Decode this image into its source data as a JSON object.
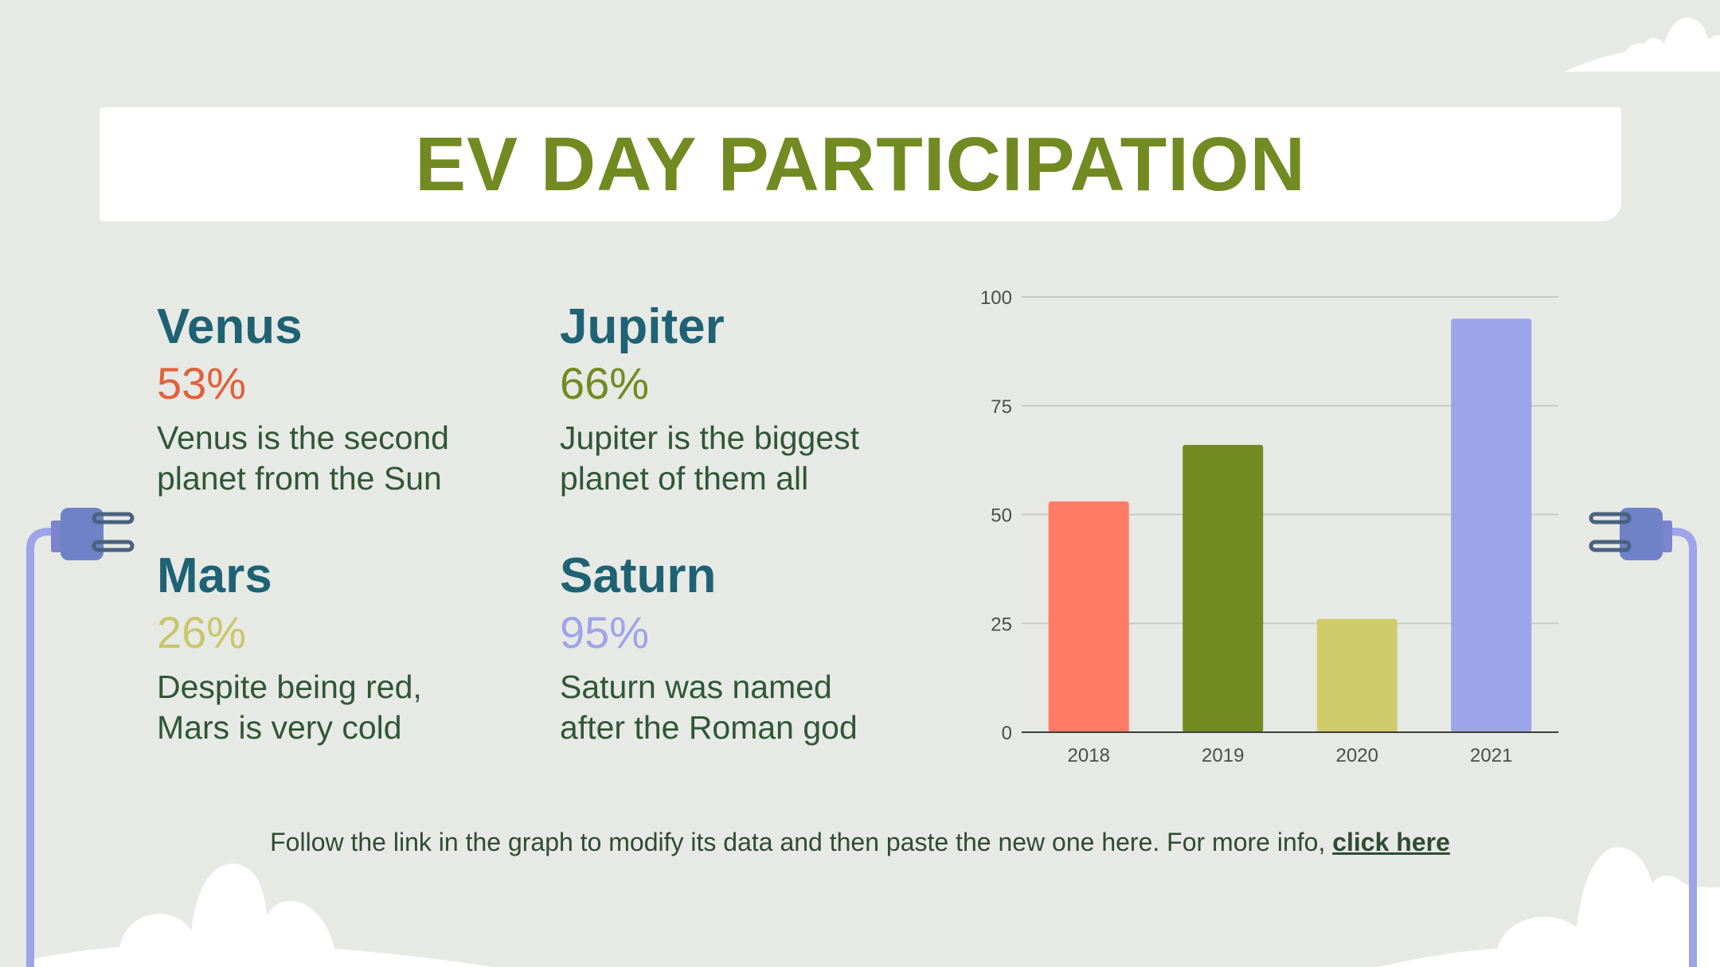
{
  "title": "EV DAY PARTICIPATION",
  "stats": [
    {
      "name": "Venus",
      "percent": "53%",
      "desc_line1": "Venus is the second",
      "desc_line2": "planet from the Sun",
      "color": "#e1603a"
    },
    {
      "name": "Jupiter",
      "percent": "66%",
      "desc_line1": "Jupiter is the biggest",
      "desc_line2": "planet of them all",
      "color": "#728a22"
    },
    {
      "name": "Mars",
      "percent": "26%",
      "desc_line1": "Despite being red,",
      "desc_line2": "Mars is very cold",
      "color": "#c9c66b"
    },
    {
      "name": "Saturn",
      "percent": "95%",
      "desc_line1": "Saturn was named",
      "desc_line2": "after the Roman god",
      "color": "#9ea3ea"
    }
  ],
  "footer": {
    "text": "Follow the link in the graph to modify its data and then paste the new one here. For more info,",
    "link": "click here"
  },
  "chart_data": {
    "type": "bar",
    "categories": [
      "2018",
      "2019",
      "2020",
      "2021"
    ],
    "values": [
      53,
      66,
      26,
      95
    ],
    "colors": [
      "#ff7b66",
      "#728a22",
      "#cfcb6a",
      "#9ea4ea"
    ],
    "ylim": [
      0,
      100
    ],
    "yticks": [
      0,
      25,
      50,
      75,
      100
    ],
    "grid": true,
    "title": "",
    "xlabel": "",
    "ylabel": ""
  }
}
